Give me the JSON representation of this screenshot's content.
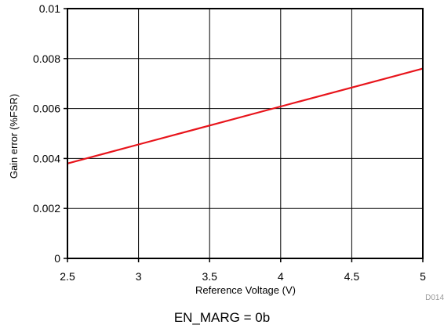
{
  "chart_data": {
    "type": "line",
    "xlabel": "Reference Voltage (V)",
    "ylabel": "Gain error (%FSR)",
    "xlim": [
      2.5,
      5
    ],
    "ylim": [
      0,
      0.01
    ],
    "x_ticks": [
      "2.5",
      "3",
      "3.5",
      "4",
      "4.5",
      "5"
    ],
    "y_ticks": [
      "0",
      "0.002",
      "0.004",
      "0.006",
      "0.008",
      "0.01"
    ],
    "grid": true,
    "series": [
      {
        "color": "#e8141b",
        "x": [
          2.5,
          3.0,
          3.5,
          4.0,
          4.5,
          5.0
        ],
        "y": [
          0.0038,
          0.00456,
          0.00532,
          0.00608,
          0.00684,
          0.0076
        ]
      }
    ],
    "figure_id": "D014"
  },
  "caption": "EN_MARG = 0b"
}
